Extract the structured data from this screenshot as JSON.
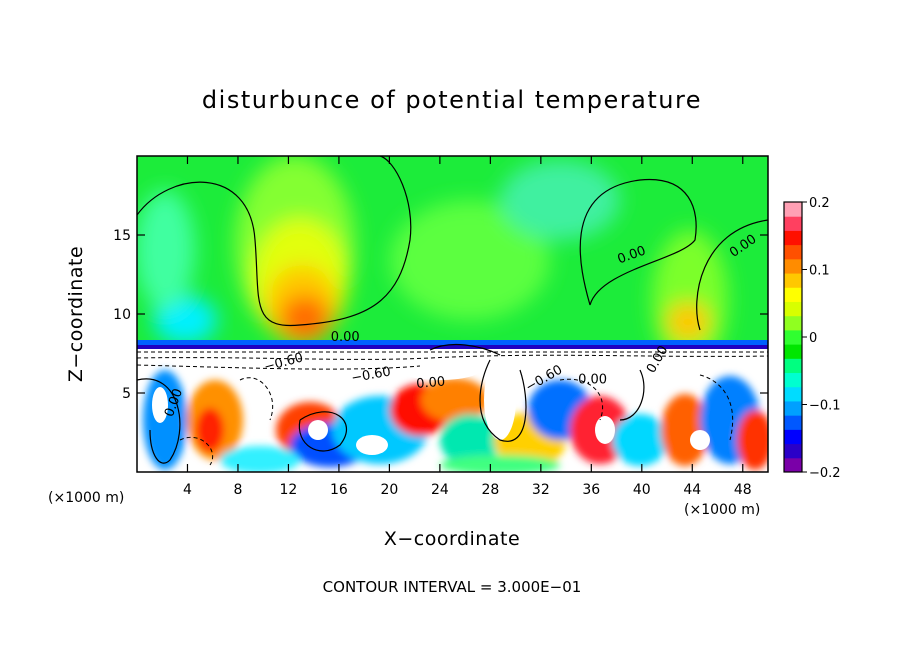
{
  "chart_data": {
    "type": "heatmap",
    "title": "disturbunce of potential temperature",
    "xlabel": "X−coordinate",
    "ylabel": "Z−coordinate",
    "x_multiplier_label": "(×1000 m)",
    "footer": "CONTOUR INTERVAL = 3.000E−01",
    "xlim": [
      0,
      50
    ],
    "ylim": [
      0,
      20
    ],
    "x_ticks": [
      4,
      8,
      12,
      16,
      20,
      24,
      28,
      32,
      36,
      40,
      44,
      48
    ],
    "x_tick_labels": [
      "4",
      "8",
      "12",
      "16",
      "20",
      "24",
      "28",
      "32",
      "36",
      "40",
      "44",
      "48"
    ],
    "y_ticks": [
      5,
      10,
      15
    ],
    "y_tick_labels": [
      "5",
      "10",
      "15"
    ],
    "colorbar": {
      "range": [
        -0.2,
        0.2
      ],
      "ticks": [
        -0.2,
        -0.1,
        0,
        0.1,
        0.2
      ],
      "tick_labels": [
        "−0.2",
        "−0.1",
        "0",
        "0.1",
        "0.2"
      ],
      "colors": [
        "#7a00a8",
        "#2a00c8",
        "#0000ff",
        "#0058ff",
        "#00a0ff",
        "#00dcff",
        "#00ffd0",
        "#00ff80",
        "#00e600",
        "#30ff30",
        "#90ff20",
        "#d8ff00",
        "#ffff00",
        "#ffc800",
        "#ff8c00",
        "#ff5000",
        "#ff1000",
        "#ff4060",
        "#ffa0b4"
      ]
    },
    "contour_labels": [
      {
        "text": "0.00",
        "x": 3.2,
        "y": 4.3,
        "angle": -70
      },
      {
        "text": "−0.60",
        "x": 11.7,
        "y": 6.7,
        "angle": -15
      },
      {
        "text": "−0.60",
        "x": 18.6,
        "y": 5.9,
        "angle": -10
      },
      {
        "text": "0.00",
        "x": 16.5,
        "y": 8.3,
        "angle": 0
      },
      {
        "text": "0.00",
        "x": 23.3,
        "y": 5.4,
        "angle": -5
      },
      {
        "text": "−0.60",
        "x": 32.4,
        "y": 5.7,
        "angle": -30
      },
      {
        "text": "0.00",
        "x": 36.1,
        "y": 5.6,
        "angle": 0
      },
      {
        "text": "0.00",
        "x": 39.3,
        "y": 13.5,
        "angle": -20
      },
      {
        "text": "0.00",
        "x": 48.2,
        "y": 14.1,
        "angle": -35
      },
      {
        "text": "0.00",
        "x": 41.5,
        "y": 7.0,
        "angle": -60
      }
    ]
  }
}
